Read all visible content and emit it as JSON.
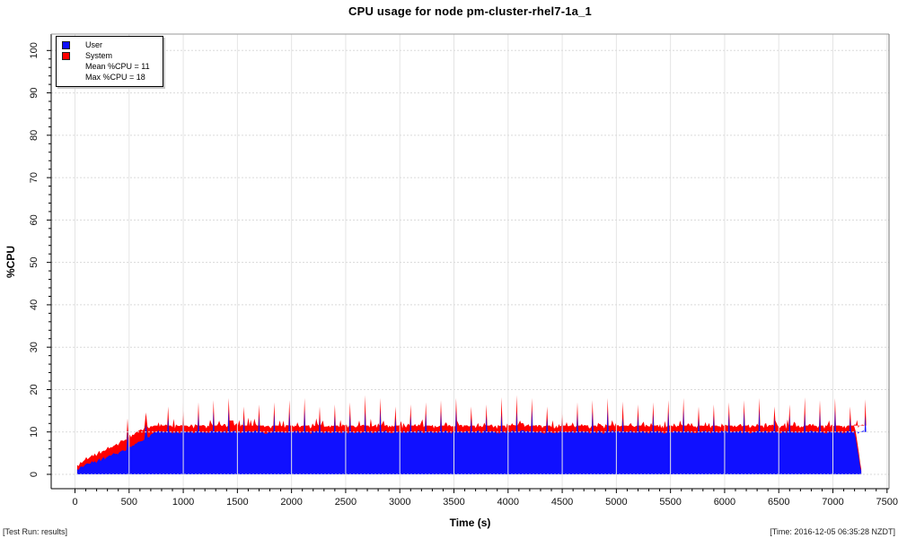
{
  "title": "CPU usage for node pm-cluster-rhel7-1a_1",
  "legend": {
    "items": [
      {
        "label": "User",
        "color": "#1010ff"
      },
      {
        "label": "System",
        "color": "#ff0000"
      }
    ],
    "stats": [
      "Mean %CPU = 11",
      "Max %CPU = 18"
    ]
  },
  "footer": {
    "left": "[Test Run: results]",
    "right": "[Time: 2016-12-05 06:35:28 NZDT]"
  },
  "chart_data": {
    "type": "area",
    "stacked": true,
    "title": "CPU usage for node pm-cluster-rhel7-1a_1",
    "xlabel": "Time (s)",
    "ylabel": "%CPU",
    "xlim": [
      0,
      7500
    ],
    "ylim": [
      0,
      100
    ],
    "x_major_tick": 500,
    "x_minor_tick": 100,
    "y_major_tick": 10,
    "y_minor_tick": 2,
    "grid": {
      "vertical": "solid",
      "horizontal": "dashed"
    },
    "legend_position": "top-left",
    "series": [
      {
        "name": "User",
        "color": "#1010ff"
      },
      {
        "name": "System",
        "color": "#ff0000"
      }
    ],
    "summary": {
      "mean_total_pct": 11,
      "max_total_pct": 18,
      "data_start_s": 20,
      "data_end_s": 7262
    },
    "profile": {
      "ramp_points": [
        [
          20,
          1.2,
          1.0
        ],
        [
          50,
          1.8,
          1.1
        ],
        [
          90,
          2.2,
          1.2
        ],
        [
          130,
          2.5,
          1.4
        ],
        [
          170,
          2.8,
          1.5
        ],
        [
          210,
          3.2,
          1.7
        ],
        [
          250,
          3.6,
          1.8
        ],
        [
          290,
          4.0,
          1.9
        ],
        [
          330,
          4.4,
          2.0
        ],
        [
          370,
          4.8,
          2.1
        ],
        [
          410,
          5.2,
          2.2
        ],
        [
          450,
          5.6,
          2.3
        ],
        [
          475,
          5.8,
          2.4
        ],
        [
          485,
          10.6,
          2.6
        ],
        [
          495,
          6.2,
          2.5
        ],
        [
          530,
          6.8,
          2.6
        ],
        [
          570,
          7.3,
          2.7
        ],
        [
          610,
          7.8,
          2.8
        ],
        [
          640,
          8.2,
          2.7
        ],
        [
          655,
          11.8,
          2.8
        ],
        [
          670,
          8.8,
          2.4
        ],
        [
          700,
          9.4,
          2.0
        ],
        [
          730,
          9.9,
          1.6
        ]
      ],
      "plateau": {
        "t_start": 750,
        "t_end": 7195,
        "cycle_s": 140,
        "base_user": 10,
        "base_system": 1.5,
        "spike_total_min": 16,
        "spike_total_max": 18,
        "spike_system": 2.6
      },
      "tail_points": [
        [
          7195,
          10,
          1.5
        ],
        [
          7210,
          8.6,
          1.6
        ],
        [
          7225,
          6.2,
          1.5
        ],
        [
          7240,
          3.8,
          1.2
        ],
        [
          7252,
          1.8,
          0.9
        ],
        [
          7262,
          0.8,
          0.5
        ]
      ]
    }
  }
}
